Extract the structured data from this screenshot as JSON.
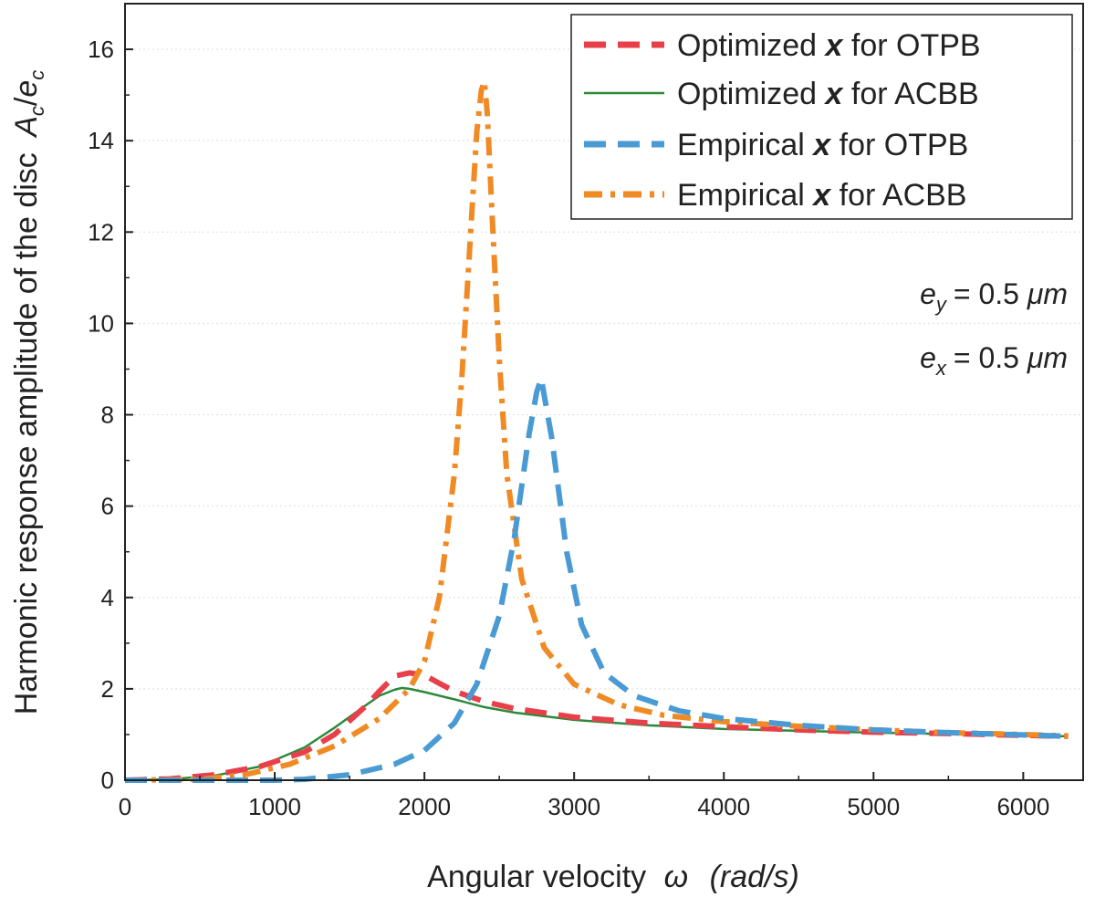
{
  "chart_data": {
    "type": "line",
    "xlabel": "Angular velocity",
    "xlabel_symbol": "ω",
    "xlabel_unit": "(rad/s)",
    "ylabel": "Harmonic response amplitude of the disc",
    "ylabel_symbol_num": "A",
    "ylabel_symbol_den": "e",
    "ylabel_sub": "c",
    "xlim": [
      0,
      6400
    ],
    "ylim": [
      0,
      17
    ],
    "xticks": [
      0,
      1000,
      2000,
      3000,
      4000,
      5000,
      6000
    ],
    "yticks": [
      0,
      2,
      4,
      6,
      8,
      10,
      12,
      14,
      16
    ],
    "grid": "horizontal",
    "legend": {
      "position": "top-right",
      "prefix_1": "Optimized",
      "prefix_2": "Optimized",
      "prefix_3": "Empirical",
      "prefix_4": "Empirical",
      "var": "x",
      "suffix_1": "for OTPB",
      "suffix_2": "for ACBB",
      "suffix_3": "for OTPB",
      "suffix_4": "for ACBB"
    },
    "annotations": [
      {
        "sym": "e",
        "sub": "y",
        "text": "= 0.5",
        "unit": "μm"
      },
      {
        "sym": "e",
        "sub": "x",
        "text": "= 0.5",
        "unit": "μm"
      }
    ],
    "series": [
      {
        "name": "Optimized x for OTPB",
        "color": "#e8404a",
        "style": "dashed",
        "x": [
          0,
          300,
          600,
          900,
          1200,
          1400,
          1600,
          1700,
          1800,
          1900,
          2000,
          2100,
          2200,
          2400,
          2600,
          3000,
          3500,
          4000,
          4500,
          5000,
          5500,
          6000,
          6300
        ],
        "y": [
          0,
          0.03,
          0.12,
          0.3,
          0.62,
          1.0,
          1.6,
          1.95,
          2.28,
          2.35,
          2.3,
          2.12,
          1.95,
          1.72,
          1.57,
          1.38,
          1.25,
          1.17,
          1.1,
          1.05,
          1.02,
          0.98,
          0.96
        ]
      },
      {
        "name": "Optimized x for ACBB",
        "color": "#2a8a3a",
        "style": "solid",
        "x": [
          0,
          300,
          600,
          900,
          1200,
          1400,
          1600,
          1700,
          1800,
          1850,
          1900,
          2000,
          2200,
          2400,
          2600,
          3000,
          3500,
          4000,
          4500,
          5000,
          5500,
          6000,
          6300
        ],
        "y": [
          0,
          0.02,
          0.1,
          0.3,
          0.72,
          1.15,
          1.62,
          1.85,
          1.98,
          2.02,
          2.0,
          1.93,
          1.77,
          1.6,
          1.48,
          1.32,
          1.2,
          1.12,
          1.08,
          1.04,
          1.01,
          0.98,
          0.96
        ]
      },
      {
        "name": "Empirical x for OTPB",
        "color": "#4a9ad4",
        "style": "dashed",
        "x": [
          0,
          1000,
          1200,
          1500,
          1800,
          2000,
          2200,
          2350,
          2500,
          2600,
          2700,
          2750,
          2780,
          2850,
          2950,
          3050,
          3200,
          3400,
          3700,
          4000,
          4500,
          5000,
          5500,
          6000,
          6300
        ],
        "y": [
          0,
          0,
          0.02,
          0.12,
          0.35,
          0.65,
          1.25,
          2.1,
          3.6,
          5.3,
          7.6,
          8.5,
          8.8,
          7.5,
          5.0,
          3.4,
          2.35,
          1.85,
          1.52,
          1.35,
          1.2,
          1.1,
          1.04,
          0.99,
          0.96
        ]
      },
      {
        "name": "Empirical x for ACBB",
        "color": "#f08a24",
        "style": "dashdot",
        "x": [
          0,
          500,
          800,
          1100,
          1400,
          1700,
          1900,
          2000,
          2100,
          2200,
          2250,
          2300,
          2350,
          2380,
          2400,
          2420,
          2450,
          2500,
          2550,
          2650,
          2800,
          3000,
          3300,
          3600,
          4000,
          4500,
          5000,
          5500,
          6000,
          6300
        ],
        "y": [
          0,
          0.02,
          0.12,
          0.35,
          0.75,
          1.35,
          2.0,
          2.6,
          4.0,
          6.7,
          8.8,
          11.5,
          14.2,
          15.1,
          15.3,
          14.6,
          12.5,
          9.2,
          6.7,
          4.4,
          2.9,
          2.1,
          1.65,
          1.42,
          1.28,
          1.18,
          1.1,
          1.04,
          1.0,
          0.97
        ]
      }
    ]
  }
}
